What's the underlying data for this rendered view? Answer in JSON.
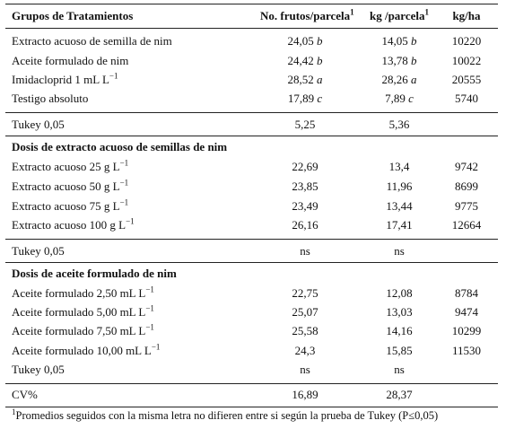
{
  "header": {
    "col0": "Grupos de Tratamientos",
    "col1": "No. frutos/parcela",
    "col1_sup": "1",
    "col2": "kg /parcela",
    "col2_sup": "1",
    "col3": "kg/ha"
  },
  "group1": {
    "rows": [
      {
        "name": "Extracto acuoso de semilla de nim",
        "frutos": "24,05",
        "frutos_letter": "b",
        "kg": "14,05",
        "kg_letter": "b",
        "kgha": "10220"
      },
      {
        "name": "Aceite formulado de nim",
        "frutos": "24,42",
        "frutos_letter": "b",
        "kg": "13,78",
        "kg_letter": "b",
        "kgha": "10022"
      },
      {
        "name": "Imidacloprid 1 mL L",
        "name_sup": "−1",
        "frutos": "28,52",
        "frutos_letter": "a",
        "kg": "28,26",
        "kg_letter": "a",
        "kgha": "20555"
      },
      {
        "name": "Testigo absoluto",
        "frutos": "17,89",
        "frutos_letter": "c",
        "kg": "7,89",
        "kg_letter": "c",
        "kgha": "5740"
      }
    ],
    "tukey": {
      "name": "Tukey 0,05",
      "frutos": "5,25",
      "kg": "5,36"
    }
  },
  "group2": {
    "title": "Dosis de extracto acuoso de semillas de nim",
    "rows": [
      {
        "name": "Extracto acuoso 25 g L",
        "name_sup": "−1",
        "frutos": "22,69",
        "kg": "13,4",
        "kgha": "9742"
      },
      {
        "name": "Extracto acuoso 50 g L",
        "name_sup": "−1",
        "frutos": "23,85",
        "kg": "11,96",
        "kgha": "8699"
      },
      {
        "name": "Extracto acuoso 75 g L",
        "name_sup": "−1",
        "frutos": "23,49",
        "kg": "13,44",
        "kgha": "9775"
      },
      {
        "name": "Extracto acuoso 100 g L",
        "name_sup": "−1",
        "frutos": "26,16",
        "kg": "17,41",
        "kgha": "12664"
      }
    ],
    "tukey": {
      "name": "Tukey 0,05",
      "frutos": "ns",
      "kg": "ns"
    }
  },
  "group3": {
    "title": "Dosis de aceite formulado de nim",
    "rows": [
      {
        "name": "Aceite formulado 2,50 mL L",
        "name_sup": "−1",
        "frutos": "22,75",
        "kg": "12,08",
        "kgha": "8784"
      },
      {
        "name": "Aceite formulado 5,00 mL L",
        "name_sup": "−1",
        "frutos": "25,07",
        "kg": "13,03",
        "kgha": "9474"
      },
      {
        "name": "Aceite formulado 7,50 mL L",
        "name_sup": "−1",
        "frutos": "25,58",
        "kg": "14,16",
        "kgha": "10299"
      },
      {
        "name": "Aceite formulado 10,00 mL L",
        "name_sup": "−1",
        "frutos": "24,3",
        "kg": "15,85",
        "kgha": "11530"
      }
    ],
    "tukey": {
      "name": "Tukey 0,05",
      "frutos": "ns",
      "kg": "ns"
    }
  },
  "cv": {
    "name": "CV%",
    "frutos": "16,89",
    "kg": "28,37"
  },
  "footnote": {
    "sup": "1",
    "text": "Promedios seguidos con la misma letra no difieren entre si según la prueba de Tukey (P≤0,05)"
  }
}
